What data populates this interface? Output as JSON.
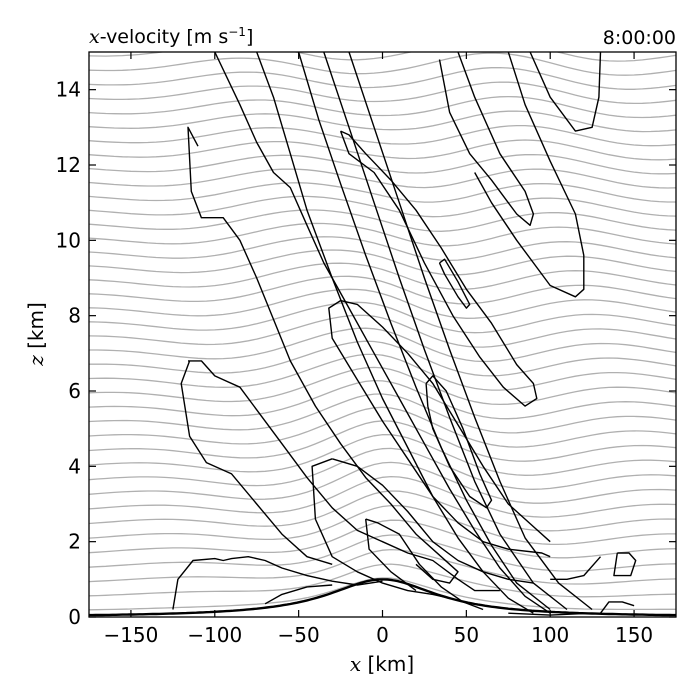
{
  "chart_data": {
    "type": "contour",
    "title_left": "𝑥-velocity [m s⁻¹]",
    "title_left_var": "x",
    "title_left_rest": "-velocity [m s",
    "title_left_sup": "−1",
    "title_left_close": "]",
    "title_right": "8:00:00",
    "xlabel_var": "x",
    "xlabel_rest": " [km]",
    "ylabel_var": "z",
    "ylabel_rest": " [km]",
    "xlim": [
      -175,
      175
    ],
    "ylim": [
      0,
      15
    ],
    "xticks": [
      -150,
      -100,
      -50,
      0,
      50,
      100,
      150
    ],
    "xtick_labels": [
      "−150",
      "−100",
      "−50",
      "0",
      "50",
      "100",
      "150"
    ],
    "yticks": [
      0,
      2,
      4,
      6,
      8,
      10,
      12,
      14
    ],
    "ytick_labels": [
      "0",
      "2",
      "4",
      "6",
      "8",
      "10",
      "12",
      "14"
    ],
    "terrain": {
      "peak_height_km": 1.0,
      "half_width_km": 40,
      "center_km": 0
    },
    "streamlines": {
      "color": "#b0b0b0",
      "count": 40,
      "spacing_km": 0.38
    },
    "contours": [
      [
        [
          -125,
          0.2
        ],
        [
          -122,
          1.0
        ],
        [
          -113,
          1.5
        ],
        [
          -100,
          1.55
        ],
        [
          -95,
          1.5
        ],
        [
          -90,
          1.55
        ],
        [
          -80,
          1.6
        ],
        [
          -70,
          1.5
        ],
        [
          -60,
          1.3
        ],
        [
          -45,
          1.1
        ],
        [
          -30,
          0.95
        ],
        [
          -15,
          0.85
        ],
        [
          0,
          0.95
        ]
      ],
      [
        [
          -70,
          0.35
        ],
        [
          -60,
          0.6
        ],
        [
          -45,
          0.8
        ],
        [
          -30,
          0.85
        ]
      ],
      [
        [
          125,
          0.1
        ],
        [
          100,
          0.05
        ],
        [
          75,
          0.1
        ]
      ],
      [
        [
          -100,
          15.0
        ],
        [
          -85,
          13.6
        ],
        [
          -75,
          12.6
        ],
        [
          -65,
          11.8
        ],
        [
          -55,
          11.4
        ],
        [
          -45,
          10.4
        ],
        [
          -35,
          9.4
        ],
        [
          -20,
          8.2
        ],
        [
          -5,
          7.0
        ],
        [
          10,
          5.8
        ],
        [
          25,
          4.6
        ],
        [
          40,
          3.4
        ],
        [
          55,
          2.3
        ],
        [
          70,
          1.3
        ],
        [
          85,
          0.55
        ],
        [
          100,
          0.1
        ]
      ],
      [
        [
          -75,
          15.0
        ],
        [
          -65,
          13.8
        ],
        [
          -55,
          12.3
        ],
        [
          -45,
          10.8
        ],
        [
          -30,
          9.0
        ],
        [
          -15,
          7.3
        ],
        [
          0,
          5.8
        ],
        [
          15,
          4.5
        ],
        [
          30,
          3.2
        ],
        [
          45,
          2.1
        ],
        [
          60,
          1.2
        ],
        [
          75,
          0.5
        ],
        [
          90,
          0.1
        ]
      ],
      [
        [
          -50,
          15.0
        ],
        [
          -38,
          13.2
        ],
        [
          -25,
          11.5
        ],
        [
          -10,
          9.6
        ],
        [
          5,
          7.8
        ],
        [
          20,
          6.1
        ],
        [
          35,
          4.5
        ],
        [
          50,
          3.1
        ],
        [
          65,
          1.9
        ],
        [
          80,
          0.9
        ],
        [
          100,
          0.2
        ]
      ],
      [
        [
          -35,
          15.0
        ],
        [
          -20,
          13.0
        ],
        [
          -5,
          11.0
        ],
        [
          10,
          9.0
        ],
        [
          25,
          7.1
        ],
        [
          40,
          5.3
        ],
        [
          55,
          3.6
        ],
        [
          70,
          2.2
        ],
        [
          90,
          0.9
        ],
        [
          110,
          0.2
        ]
      ],
      [
        [
          -20,
          15.0
        ],
        [
          -5,
          13.0
        ],
        [
          10,
          11.0
        ],
        [
          25,
          9.0
        ],
        [
          40,
          7.1
        ],
        [
          55,
          5.3
        ],
        [
          70,
          3.6
        ],
        [
          85,
          2.1
        ],
        [
          105,
          0.9
        ],
        [
          125,
          0.2
        ]
      ],
      [
        [
          -110,
          12.5
        ],
        [
          -116,
          13.0
        ],
        [
          -114,
          11.3
        ],
        [
          -108,
          10.6
        ],
        [
          -95,
          10.6
        ],
        [
          -85,
          10.0
        ],
        [
          -75,
          9.0
        ],
        [
          -65,
          7.9
        ],
        [
          -55,
          6.8
        ],
        [
          -40,
          5.6
        ],
        [
          -25,
          4.6
        ],
        [
          -10,
          3.7
        ],
        [
          5,
          3.0
        ],
        [
          20,
          2.2
        ],
        [
          35,
          1.6
        ],
        [
          45,
          1.2
        ],
        [
          40,
          0.9
        ],
        [
          30,
          1.0
        ],
        [
          20,
          1.4
        ]
      ],
      [
        [
          -115,
          6.8
        ],
        [
          -120,
          6.2
        ],
        [
          -115,
          4.8
        ],
        [
          -105,
          4.1
        ],
        [
          -90,
          3.8
        ],
        [
          -75,
          3.0
        ],
        [
          -60,
          2.2
        ],
        [
          -45,
          1.6
        ],
        [
          -30,
          1.4
        ]
      ],
      [
        [
          -116,
          6.8
        ],
        [
          -108,
          6.8
        ],
        [
          -100,
          6.4
        ],
        [
          -85,
          6.1
        ],
        [
          -75,
          5.5
        ],
        [
          -60,
          4.6
        ],
        [
          -45,
          3.7
        ],
        [
          -30,
          2.9
        ],
        [
          -15,
          2.3
        ],
        [
          0,
          2.0
        ],
        [
          15,
          1.7
        ],
        [
          30,
          1.5
        ],
        [
          45,
          1.0
        ],
        [
          55,
          0.7
        ],
        [
          70,
          0.7
        ]
      ],
      [
        [
          -30,
          4.2
        ],
        [
          -42,
          4.0
        ],
        [
          -40,
          2.6
        ],
        [
          -30,
          1.6
        ],
        [
          -15,
          1.2
        ],
        [
          0,
          0.9
        ],
        [
          15,
          0.7
        ],
        [
          30,
          0.6
        ],
        [
          40,
          0.5
        ]
      ],
      [
        [
          -30,
          4.2
        ],
        [
          -15,
          4.0
        ],
        [
          0,
          3.5
        ],
        [
          15,
          2.8
        ],
        [
          30,
          2.0
        ],
        [
          45,
          1.5
        ],
        [
          60,
          1.2
        ],
        [
          75,
          1.0
        ],
        [
          90,
          0.9
        ]
      ],
      [
        [
          -10,
          2.6
        ],
        [
          -3,
          2.5
        ],
        [
          10,
          2.2
        ],
        [
          22,
          1.4
        ],
        [
          35,
          0.8
        ],
        [
          48,
          0.4
        ],
        [
          60,
          0.2
        ]
      ],
      [
        [
          -10,
          2.6
        ],
        [
          -8,
          1.8
        ],
        [
          5,
          1.2
        ],
        [
          20,
          0.7
        ]
      ],
      [
        [
          26,
          6.2
        ],
        [
          30,
          6.4
        ],
        [
          38,
          6.0
        ],
        [
          48,
          5.0
        ],
        [
          58,
          3.8
        ],
        [
          65,
          3.1
        ],
        [
          62,
          2.9
        ],
        [
          52,
          3.2
        ],
        [
          40,
          4.0
        ],
        [
          30,
          5.0
        ],
        [
          27,
          5.6
        ],
        [
          26,
          6.2
        ]
      ],
      [
        [
          -25,
          8.4
        ],
        [
          -32,
          8.2
        ],
        [
          -30,
          7.4
        ],
        [
          -15,
          6.3
        ],
        [
          0,
          5.2
        ],
        [
          15,
          4.2
        ],
        [
          30,
          3.2
        ],
        [
          45,
          2.5
        ],
        [
          60,
          2.0
        ],
        [
          75,
          1.8
        ],
        [
          95,
          1.7
        ],
        [
          100,
          1.6
        ]
      ],
      [
        [
          -25,
          8.4
        ],
        [
          -15,
          8.3
        ],
        [
          0,
          7.7
        ],
        [
          15,
          7.0
        ],
        [
          30,
          6.2
        ],
        [
          45,
          5.1
        ],
        [
          60,
          4.0
        ],
        [
          75,
          3.0
        ],
        [
          90,
          2.4
        ],
        [
          100,
          2.0
        ]
      ],
      [
        [
          -25,
          12.9
        ],
        [
          -20,
          12.8
        ],
        [
          -10,
          12.3
        ],
        [
          5,
          11.6
        ],
        [
          20,
          10.8
        ],
        [
          35,
          9.8
        ],
        [
          50,
          8.7
        ],
        [
          65,
          7.8
        ],
        [
          80,
          6.7
        ],
        [
          90,
          6.2
        ],
        [
          92,
          5.8
        ],
        [
          85,
          5.6
        ],
        [
          72,
          6.1
        ],
        [
          58,
          6.9
        ],
        [
          42,
          8.0
        ],
        [
          25,
          9.4
        ],
        [
          10,
          10.8
        ],
        [
          -5,
          11.8
        ],
        [
          -20,
          12.3
        ],
        [
          -25,
          12.9
        ]
      ],
      [
        [
          34,
          9.4
        ],
        [
          37,
          9.5
        ],
        [
          45,
          8.9
        ],
        [
          52,
          8.3
        ],
        [
          50,
          8.2
        ],
        [
          45,
          8.5
        ],
        [
          37,
          9.1
        ],
        [
          34,
          9.4
        ]
      ],
      [
        [
          45,
          15.0
        ],
        [
          55,
          13.8
        ],
        [
          70,
          12.3
        ],
        [
          85,
          11.3
        ],
        [
          90,
          10.7
        ],
        [
          88,
          10.4
        ],
        [
          80,
          10.7
        ],
        [
          65,
          11.6
        ],
        [
          52,
          12.3
        ],
        [
          40,
          13.4
        ],
        [
          34,
          14.8
        ]
      ],
      [
        [
          75,
          15.0
        ],
        [
          85,
          13.6
        ],
        [
          100,
          12.1
        ],
        [
          115,
          10.7
        ],
        [
          120,
          9.6
        ],
        [
          120,
          8.7
        ],
        [
          115,
          8.5
        ],
        [
          100,
          8.8
        ],
        [
          80,
          10.0
        ],
        [
          65,
          11.0
        ],
        [
          55,
          11.8
        ]
      ],
      [
        [
          88,
          15.0
        ],
        [
          100,
          13.8
        ],
        [
          115,
          12.9
        ],
        [
          125,
          13.0
        ],
        [
          129,
          13.8
        ],
        [
          130,
          15.0
        ]
      ],
      [
        [
          140,
          1.7
        ],
        [
          147,
          1.7
        ],
        [
          151,
          1.5
        ],
        [
          148,
          1.1
        ],
        [
          138,
          1.1
        ],
        [
          140,
          1.7
        ]
      ],
      [
        [
          150,
          0.3
        ],
        [
          150,
          0.3
        ],
        [
          143,
          0.4
        ],
        [
          135,
          0.4
        ],
        [
          130,
          0.1
        ]
      ],
      [
        [
          130,
          1.6
        ],
        [
          120,
          1.1
        ],
        [
          110,
          1.0
        ],
        [
          100,
          1.0
        ]
      ]
    ]
  }
}
